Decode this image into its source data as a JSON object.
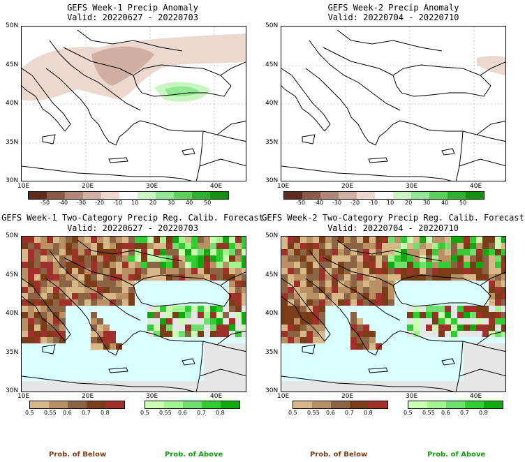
{
  "panels": [
    {
      "title": "GEFS Week-1 Precip Anomaly",
      "valid": "Valid: 20220627 - 20220703"
    },
    {
      "title": "GEFS Week-2 Precip Anomaly",
      "valid": "Valid: 20220704 - 20220710"
    },
    {
      "title": "GEFS Week-1 Two-Category Precip Reg. Calib. Forecast",
      "valid": "Valid: 20220627 - 20220703"
    },
    {
      "title": "GEFS Week-2 Two-Category Precip Reg. Calib. Forecast",
      "valid": "Valid: 20220704 - 20220710"
    }
  ],
  "axes": {
    "lat_labels": [
      "50N",
      "45N",
      "40N",
      "35N",
      "30N"
    ],
    "lon_labels": [
      "10E",
      "20E",
      "30E",
      "40E"
    ]
  },
  "anomaly_scale": {
    "labels": [
      "-50",
      "-40",
      "-30",
      "-20",
      "-10",
      "10",
      "20",
      "30",
      "40",
      "50"
    ],
    "colors": [
      "#5e2c1e",
      "#8b5a48",
      "#b08878",
      "#cfb0a3",
      "#ecd8cf",
      "#ffffff",
      "#c8f5c0",
      "#90e890",
      "#5cd05c",
      "#2db02d",
      "#129012"
    ]
  },
  "prob_below": {
    "labels": [
      "0.5",
      "0.55",
      "0.6",
      "0.7",
      "0.8"
    ],
    "colors": [
      "#d8b889",
      "#b99164",
      "#8b6443",
      "#7a3d18",
      "#a0302a"
    ],
    "caption": "Prob. of Below"
  },
  "prob_above": {
    "labels": [
      "0.5",
      "0.55",
      "0.6",
      "0.7",
      "0.8"
    ],
    "colors": [
      "#c8ffb0",
      "#a3f590",
      "#6fe06f",
      "#33cc33",
      "#0fa80f"
    ],
    "caption": "Prob. of Above"
  },
  "colors": {
    "sea": "#d9ffff",
    "no_signal": "#e6e6e6",
    "border": "#000000"
  }
}
